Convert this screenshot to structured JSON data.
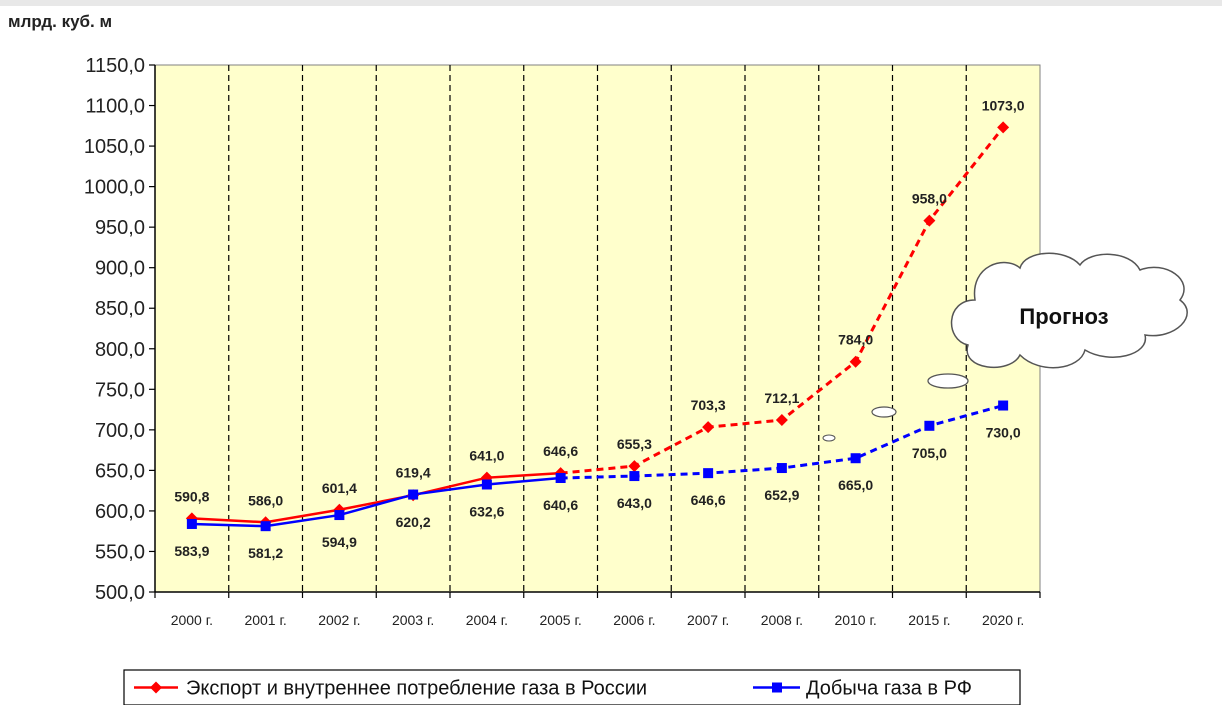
{
  "chart_data": {
    "type": "line",
    "ylabel": "млрд. куб. м",
    "ylim": [
      500,
      1150
    ],
    "ytick_step": 50,
    "y_tick_labels": [
      "500,0",
      "550,0",
      "600,0",
      "650,0",
      "700,0",
      "750,0",
      "800,0",
      "850,0",
      "900,0",
      "950,0",
      "1000,0",
      "1050,0",
      "1100,0",
      "1150,0"
    ],
    "categories": [
      "2000 г.",
      "2001 г.",
      "2002 г.",
      "2003 г.",
      "2004 г.",
      "2005 г.",
      "2006 г.",
      "2007 г.",
      "2008 г.",
      "2010 г.",
      "2015 г.",
      "2020 г."
    ],
    "forecast_from_index": 5,
    "annotation": "Прогноз",
    "grid": "vertical-dashed",
    "background_color": "#ffffcc",
    "legend_position": "bottom",
    "series": [
      {
        "name": "Экспорт и внутреннее потребление газа в России",
        "color": "#ff0000",
        "marker": "diamond",
        "values": [
          590.8,
          586.0,
          601.4,
          619.4,
          641.0,
          646.6,
          655.3,
          703.3,
          712.1,
          784.0,
          958.0,
          1073.0
        ],
        "labels": [
          "590,8",
          "586,0",
          "601,4",
          "619,4",
          "641,0",
          "646,6",
          "655,3",
          "703,3",
          "712,1",
          "784,0",
          "958,0",
          "1073,0"
        ]
      },
      {
        "name": "Добыча газа в РФ",
        "color": "#0000ff",
        "marker": "square",
        "values": [
          583.9,
          581.2,
          594.9,
          620.2,
          632.6,
          640.6,
          643.0,
          646.6,
          652.9,
          665.0,
          705.0,
          730.0
        ],
        "labels": [
          "583,9",
          "581,2",
          "594,9",
          "620,2",
          "632,6",
          "640,6",
          "643,0",
          "646,6",
          "652,9",
          "665,0",
          "705,0",
          "730,0"
        ]
      }
    ]
  }
}
